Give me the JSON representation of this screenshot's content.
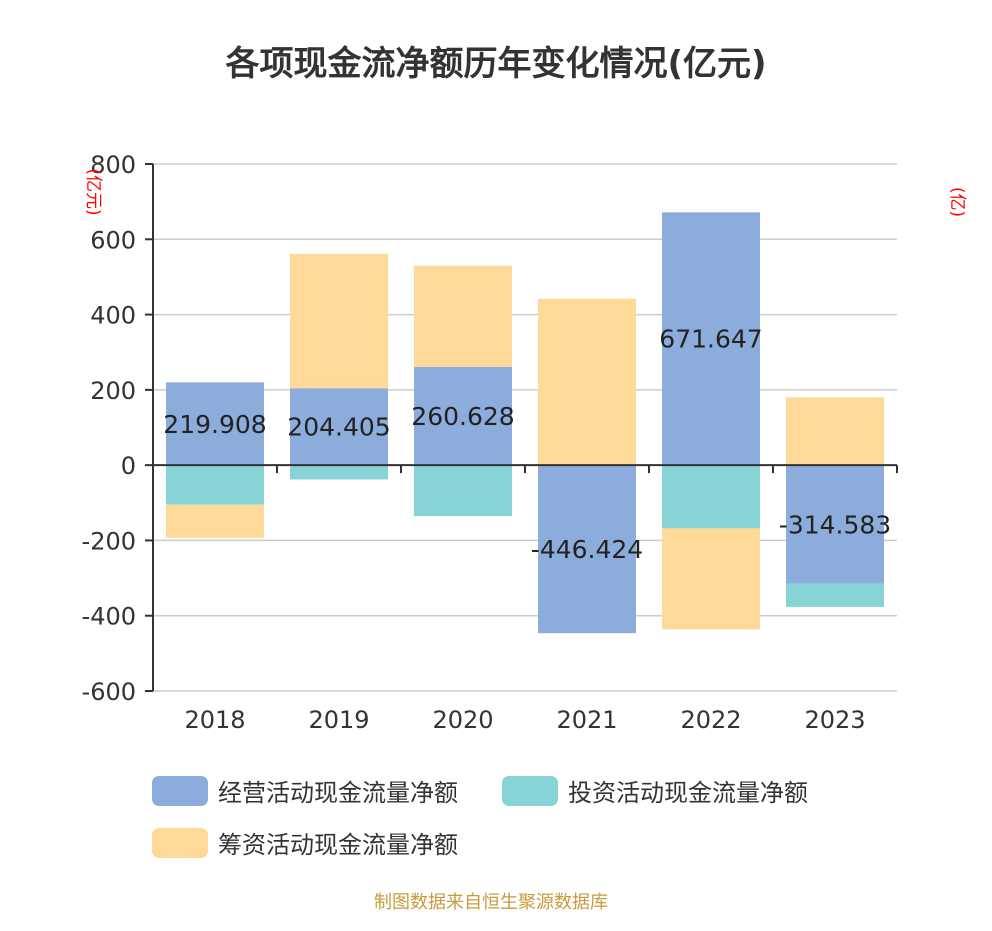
{
  "chart_data": {
    "type": "bar",
    "stacked": true,
    "title": "各项现金流净额历年变化情况(亿元)",
    "ylabel_left": "(亿元)",
    "ylabel_right": "(亿)",
    "categories": [
      "2018",
      "2019",
      "2020",
      "2021",
      "2022",
      "2023"
    ],
    "ylim": [
      -600,
      800
    ],
    "yticks": [
      800,
      600,
      400,
      200,
      0,
      -200,
      -400,
      -600
    ],
    "ytick_labels": [
      "800",
      "600",
      "400",
      "200",
      "0",
      "-200",
      "-400",
      "-600"
    ],
    "series": [
      {
        "name": "经营活动现金流量净额",
        "color": "#8cacdb",
        "values": [
          219.908,
          204.405,
          260.628,
          -446.424,
          671.647,
          -314.583
        ],
        "labels": [
          "219.908",
          "204.405",
          "260.628",
          "-446.424",
          "671.647",
          "-314.583"
        ]
      },
      {
        "name": "投资活动现金流量净额",
        "color": "#86d4d6",
        "values": [
          -105,
          -38,
          -135,
          0,
          -168,
          -62
        ]
      },
      {
        "name": "筹资活动现金流量净额",
        "color": "#fed998",
        "values": [
          -88,
          357,
          269,
          442,
          -268,
          180
        ]
      }
    ],
    "legend_position": "bottom"
  },
  "colors": {
    "title": "#333333",
    "axis_label": "#ff0000",
    "source_note": "#c89b3c",
    "grid": "#cccccc"
  },
  "source_note": "制图数据来自恒生聚源数据库"
}
